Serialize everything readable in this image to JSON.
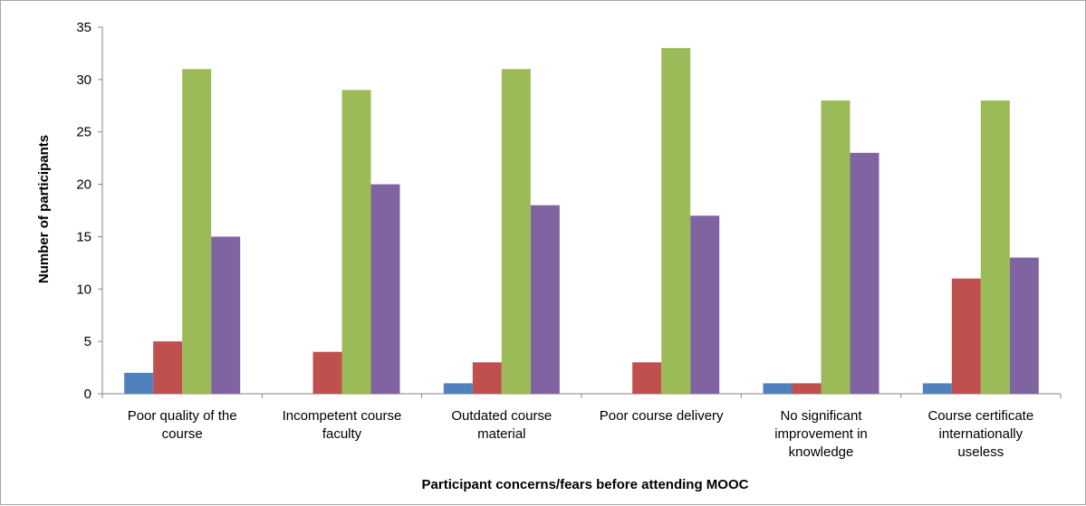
{
  "chart_data": {
    "type": "bar",
    "title": "",
    "xlabel": "Participant concerns/fears before attending MOOC",
    "ylabel": "Number of participants",
    "ylim": [
      0,
      35
    ],
    "yticks": [
      "0",
      "5",
      "10",
      "15",
      "20",
      "25",
      "30",
      "35"
    ],
    "grid": false,
    "legend": "none",
    "categories": [
      [
        "Poor quality of the",
        "course"
      ],
      [
        "Incompetent course",
        "faculty"
      ],
      [
        "Outdated course",
        "material"
      ],
      [
        "Poor course delivery"
      ],
      [
        "No significant",
        "improvement in",
        "knowledge"
      ],
      [
        "Course certificate",
        "internationally",
        "useless"
      ]
    ],
    "series": [
      {
        "color": "#4f81bd",
        "values": [
          2,
          0,
          1,
          0,
          1,
          1
        ]
      },
      {
        "color": "#c0504d",
        "values": [
          5,
          4,
          3,
          3,
          1,
          11
        ]
      },
      {
        "color": "#9bbb59",
        "values": [
          31,
          29,
          31,
          33,
          28,
          28
        ]
      },
      {
        "color": "#8064a2",
        "values": [
          15,
          20,
          18,
          17,
          23,
          13
        ]
      }
    ]
  }
}
